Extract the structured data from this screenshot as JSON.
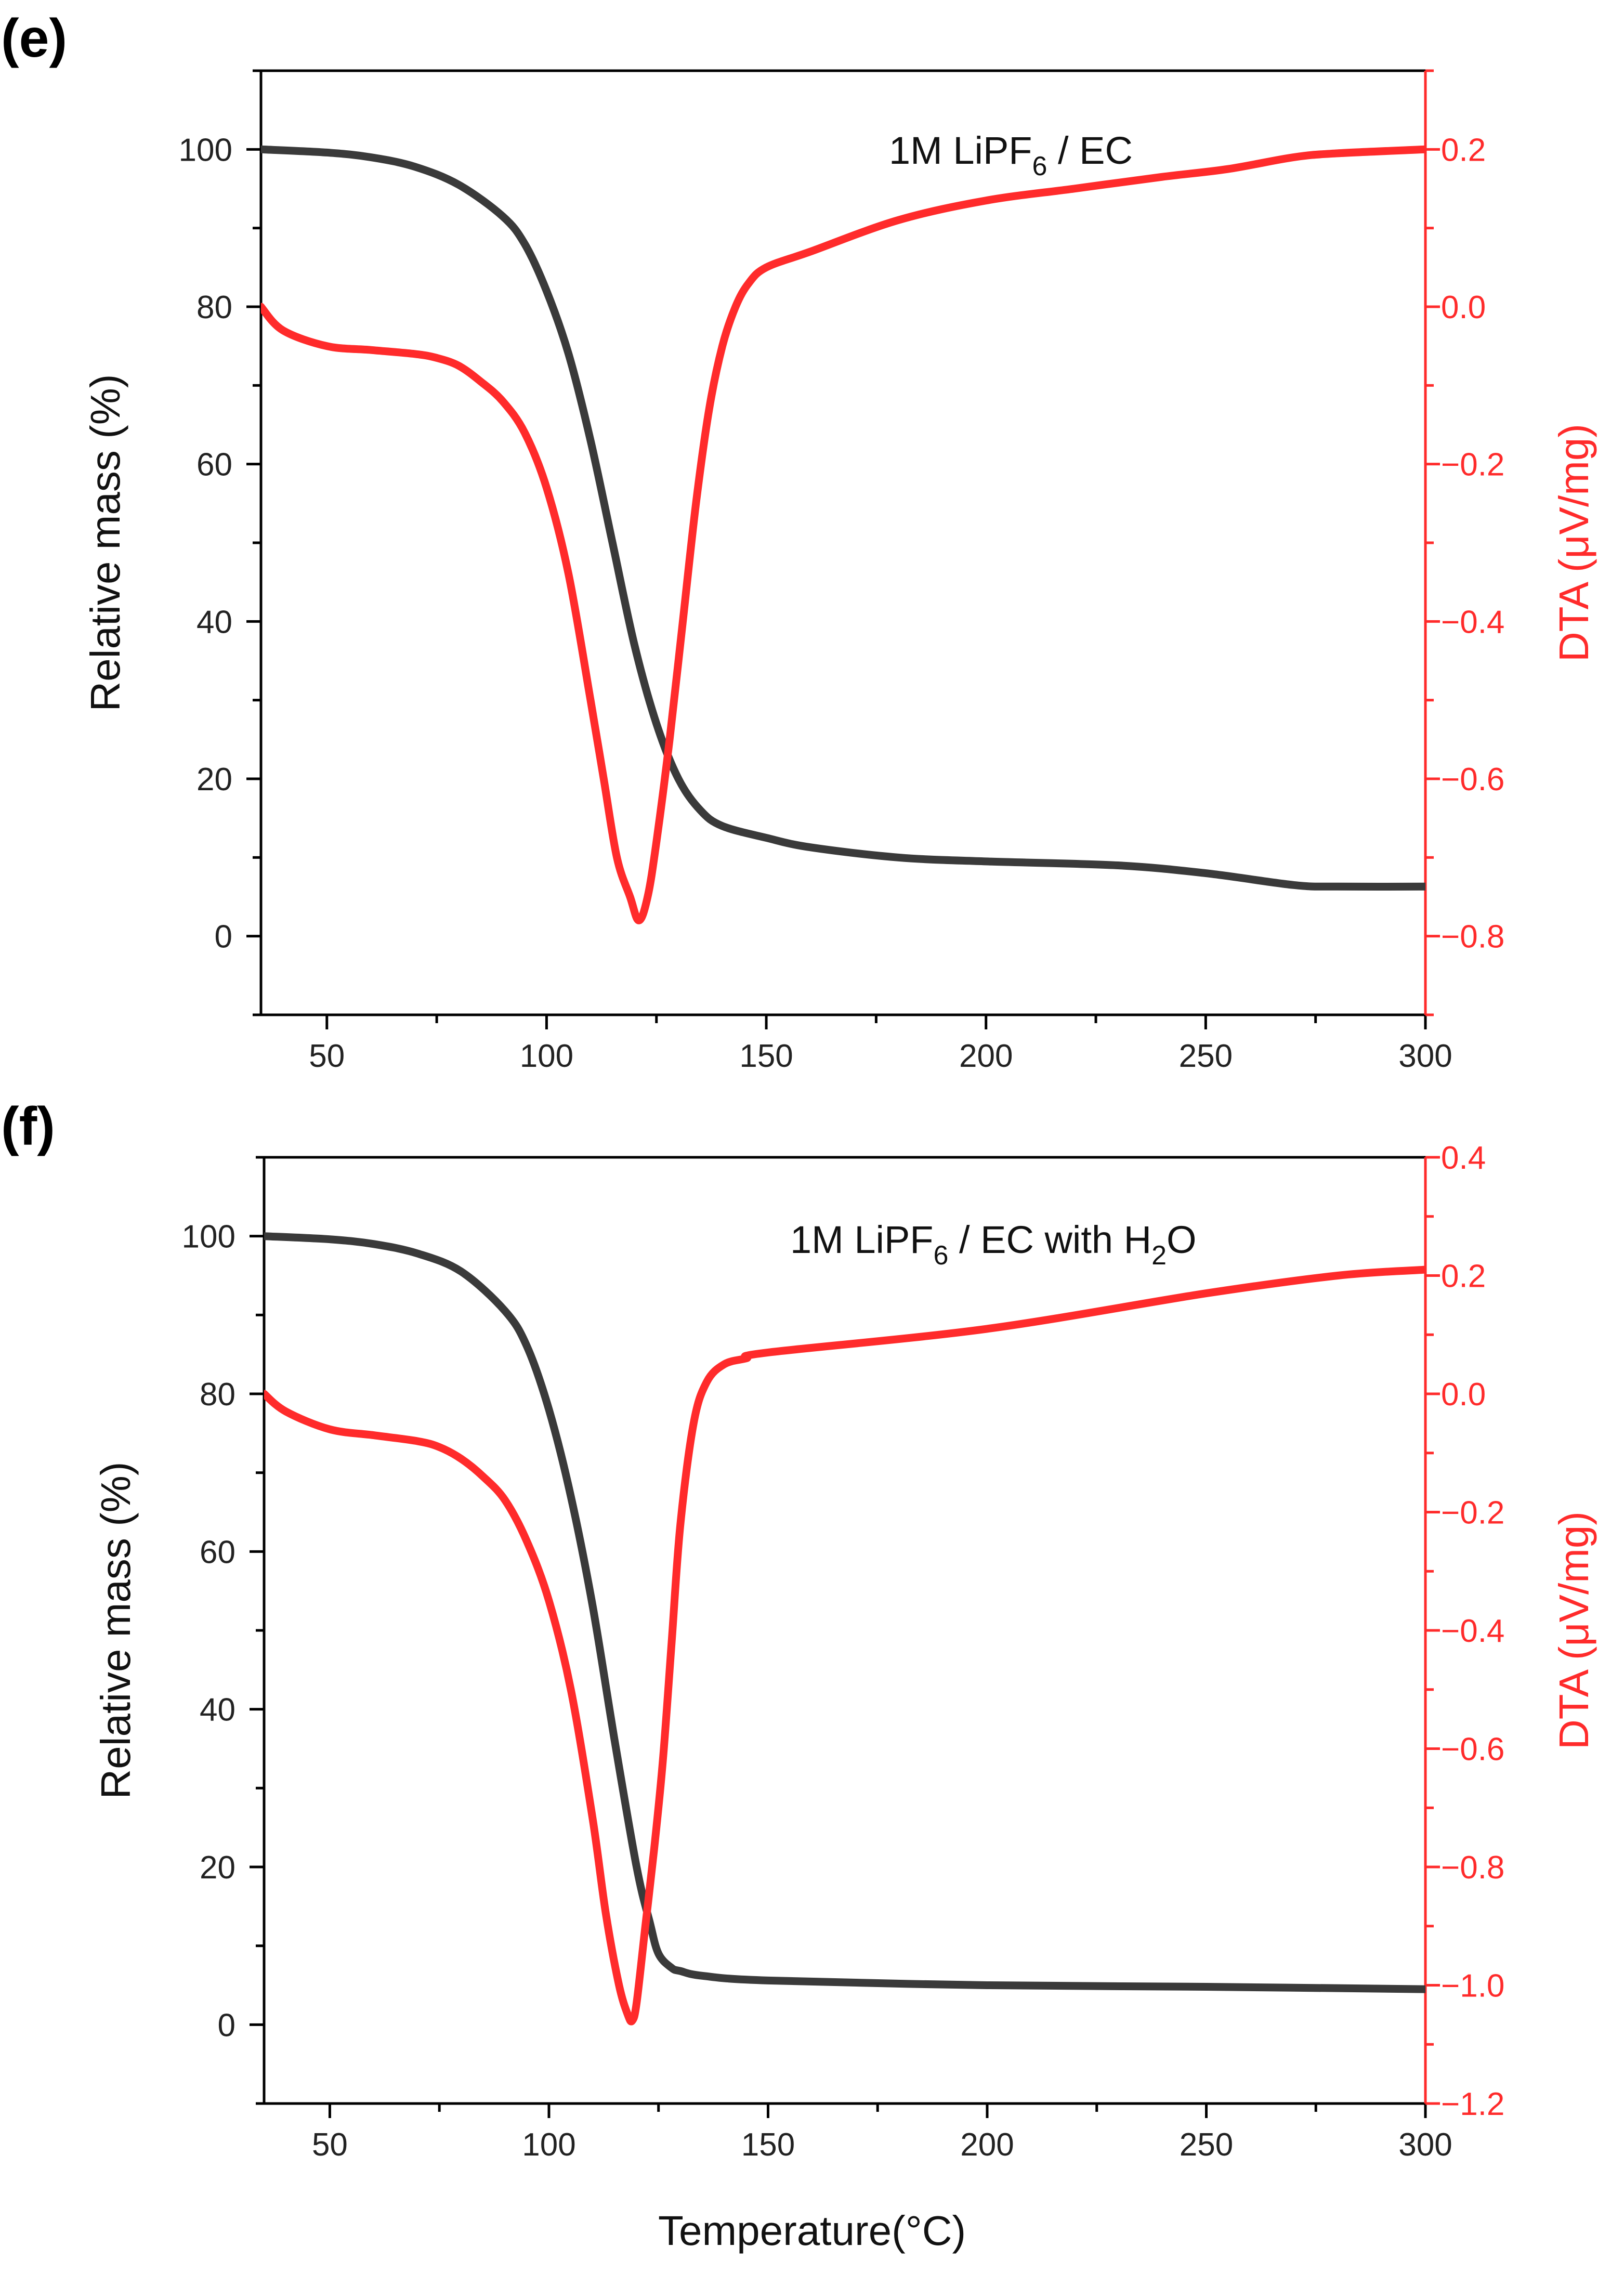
{
  "figure": {
    "shared_xlabel": "Temperature(°C)",
    "colors": {
      "mass": "#3a3a3a",
      "dta": "#ff2b2b",
      "axis": "#000000"
    }
  },
  "chart_data": [
    {
      "panel": "(e)",
      "type": "line",
      "title": "",
      "annotation": {
        "text": "1M LiPF",
        "sub": "6",
        "after": " / EC"
      },
      "xlabel": "Temperature(°C)",
      "ylabel": "Relative mass (%)",
      "y2label": "DTA (μV/mg)",
      "xlim": [
        35,
        300
      ],
      "ylim": [
        -10,
        110
      ],
      "y2lim": [
        -0.9,
        0.3
      ],
      "xticks": [
        50,
        100,
        150,
        200,
        250,
        300
      ],
      "yticks": [
        0,
        20,
        40,
        60,
        80,
        100
      ],
      "y2ticks": [
        -0.8,
        -0.6,
        -0.4,
        -0.2,
        0.0,
        0.2
      ],
      "x_tick_labels": [
        "50",
        "100",
        "150",
        "200",
        "250",
        "300"
      ],
      "y_tick_labels": [
        "0",
        "20",
        "40",
        "60",
        "80",
        "100"
      ],
      "y2_tick_labels": [
        "−0.8",
        "−0.6",
        "−0.4",
        "−0.2",
        "0.0",
        "0.2"
      ],
      "series": [
        {
          "name": "Relative mass",
          "axis": "left",
          "color": "#3a3a3a",
          "x": [
            35,
            50,
            60,
            70,
            80,
            90,
            95,
            100,
            105,
            110,
            115,
            120,
            125,
            130,
            135,
            140,
            150,
            160,
            180,
            200,
            230,
            250,
            270,
            280,
            300
          ],
          "y": [
            100,
            99.6,
            99,
            97.8,
            95.5,
            91.5,
            88,
            82,
            74,
            63,
            50,
            37,
            27,
            20,
            16,
            14,
            12.5,
            11.3,
            10,
            9.5,
            9,
            8,
            6.5,
            6.3,
            6.3
          ]
        },
        {
          "name": "DTA",
          "axis": "right",
          "color": "#ff2b2b",
          "x": [
            35,
            40,
            50,
            60,
            70,
            75,
            80,
            85,
            90,
            95,
            100,
            105,
            110,
            113,
            116,
            119,
            121,
            123,
            125,
            128,
            131,
            134,
            137,
            140,
            143,
            146,
            150,
            160,
            180,
            200,
            220,
            240,
            255,
            270,
            280,
            300
          ],
          "y": [
            0.0,
            -0.03,
            -0.05,
            -0.055,
            -0.06,
            -0.065,
            -0.075,
            -0.095,
            -0.12,
            -0.16,
            -0.23,
            -0.34,
            -0.5,
            -0.6,
            -0.7,
            -0.75,
            -0.78,
            -0.75,
            -0.68,
            -0.55,
            -0.4,
            -0.25,
            -0.13,
            -0.05,
            0.0,
            0.03,
            0.05,
            0.07,
            0.11,
            0.135,
            0.15,
            0.165,
            0.175,
            0.19,
            0.195,
            0.2
          ]
        }
      ]
    },
    {
      "panel": "(f)",
      "type": "line",
      "title": "",
      "annotation": {
        "text": "1M LiPF",
        "sub": "6",
        "after": " / EC with H",
        "sub2": "2",
        "after2": "O"
      },
      "xlabel": "Temperature(°C)",
      "ylabel": "Relative mass (%)",
      "y2label": "DTA (μV/mg)",
      "xlim": [
        35,
        300
      ],
      "ylim": [
        -10,
        110
      ],
      "y2lim": [
        -1.2,
        0.4
      ],
      "xticks": [
        50,
        100,
        150,
        200,
        250,
        300
      ],
      "yticks": [
        0,
        20,
        40,
        60,
        80,
        100
      ],
      "y2ticks": [
        -1.2,
        -1.0,
        -0.8,
        -0.6,
        -0.4,
        -0.2,
        0.0,
        0.2,
        0.4
      ],
      "x_tick_labels": [
        "50",
        "100",
        "150",
        "200",
        "250",
        "300"
      ],
      "y_tick_labels": [
        "0",
        "20",
        "40",
        "60",
        "80",
        "100"
      ],
      "y2_tick_labels": [
        "−1.2",
        "−1.0",
        "−0.8",
        "−0.6",
        "−0.4",
        "−0.2",
        "0.0",
        "0.2",
        "0.4"
      ],
      "series": [
        {
          "name": "Relative mass",
          "axis": "left",
          "color": "#3a3a3a",
          "x": [
            35,
            50,
            60,
            70,
            80,
            90,
            95,
            100,
            105,
            110,
            115,
            120,
            123,
            125,
            128,
            130,
            135,
            150,
            200,
            250,
            300
          ],
          "y": [
            100,
            99.6,
            99,
            97.8,
            95.5,
            90.5,
            86,
            78,
            67,
            53,
            36,
            20,
            13,
            9,
            7.2,
            6.8,
            6.2,
            5.6,
            5,
            4.8,
            4.5
          ]
        },
        {
          "name": "DTA",
          "axis": "right",
          "color": "#ff2b2b",
          "x": [
            35,
            40,
            50,
            60,
            70,
            75,
            80,
            85,
            90,
            95,
            100,
            105,
            110,
            113,
            116,
            118,
            119,
            120,
            122,
            124,
            126,
            128,
            130,
            133,
            136,
            140,
            145,
            150,
            200,
            250,
            280,
            300
          ],
          "y": [
            0.0,
            -0.03,
            -0.06,
            -0.07,
            -0.08,
            -0.09,
            -0.11,
            -0.14,
            -0.18,
            -0.25,
            -0.35,
            -0.5,
            -0.72,
            -0.88,
            -1.0,
            -1.05,
            -1.06,
            -1.03,
            -0.9,
            -0.77,
            -0.62,
            -0.42,
            -0.22,
            -0.05,
            0.02,
            0.05,
            0.06,
            0.07,
            0.11,
            0.17,
            0.2,
            0.21
          ]
        }
      ]
    }
  ]
}
